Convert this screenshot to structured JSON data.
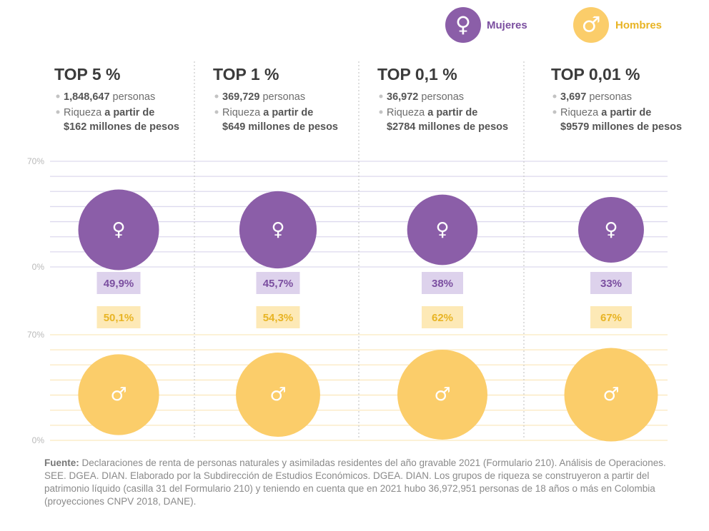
{
  "legend": {
    "women_label": "Mujeres",
    "men_label": "Hombres",
    "women_symbol": "♀",
    "men_symbol": "♂",
    "women_icon": "female-symbol-icon",
    "men_icon": "male-symbol-icon"
  },
  "colors": {
    "women": "#8b5ea8",
    "women_light": "#ddd2ec",
    "women_text": "#7b4fa0",
    "men": "#fbcd6a",
    "men_light": "#fde9b6",
    "men_text": "#e8b424",
    "grid_women": "#ddd9ee",
    "grid_men": "#fbe9bf"
  },
  "groups": [
    {
      "title": "TOP 5 %",
      "count": "1,848,647",
      "count_suffix": " personas",
      "wealth_prefix": "Riqueza ",
      "wealth_bold": "a partir de",
      "wealth_line2": "$162 millones de pesos"
    },
    {
      "title": "TOP 1 %",
      "count": "369,729",
      "count_suffix": " personas",
      "wealth_prefix": "Riqueza ",
      "wealth_bold": "a partir de",
      "wealth_line2": "$649 millones de pesos"
    },
    {
      "title": "TOP 0,1 %",
      "count": "36,972",
      "count_suffix": " personas",
      "wealth_prefix": "Riqueza ",
      "wealth_bold": "a partir de",
      "wealth_line2": "$2784 millones de pesos"
    },
    {
      "title": "TOP 0,01 %",
      "count": "3,697",
      "count_suffix": " personas",
      "wealth_prefix": "Riqueza ",
      "wealth_bold": "a partir de",
      "wealth_line2": "$9579 millones de pesos"
    }
  ],
  "chart_data": {
    "type": "bubble",
    "categories": [
      "TOP 5 %",
      "TOP 1 %",
      "TOP 0,1 %",
      "TOP 0,01 %"
    ],
    "series": [
      {
        "name": "Mujeres",
        "values": [
          49.9,
          45.7,
          38,
          33
        ],
        "labels": [
          "49,9%",
          "45,7%",
          "38%",
          "33%"
        ]
      },
      {
        "name": "Hombres",
        "values": [
          50.1,
          54.3,
          62,
          67
        ],
        "labels": [
          "50,1%",
          "54,3%",
          "62%",
          "67%"
        ]
      }
    ],
    "women_axis": {
      "max_label": "70%",
      "min_label": "0%",
      "range": [
        0,
        70
      ]
    },
    "men_axis": {
      "max_label": "70%",
      "min_label": "0%",
      "range": [
        0,
        70
      ]
    }
  },
  "footnote": {
    "label": "Fuente:",
    "text": " Declaraciones de renta de personas naturales y asimiladas residentes del año gravable 2021 (Formulario 210). Análisis de Operaciones. SEE. DGEA. DIAN. Elaborado por la Subdirección de Estudios Económicos. DGEA. DIAN. Los grupos de riqueza se construyeron a partir del patrimonio líquido (casilla 31 del Formulario 210) y teniendo en cuenta que en 2021 hubo 36,972,951 personas de 18 años o más en Colombia (proyecciones CNPV 2018, DANE)."
  }
}
